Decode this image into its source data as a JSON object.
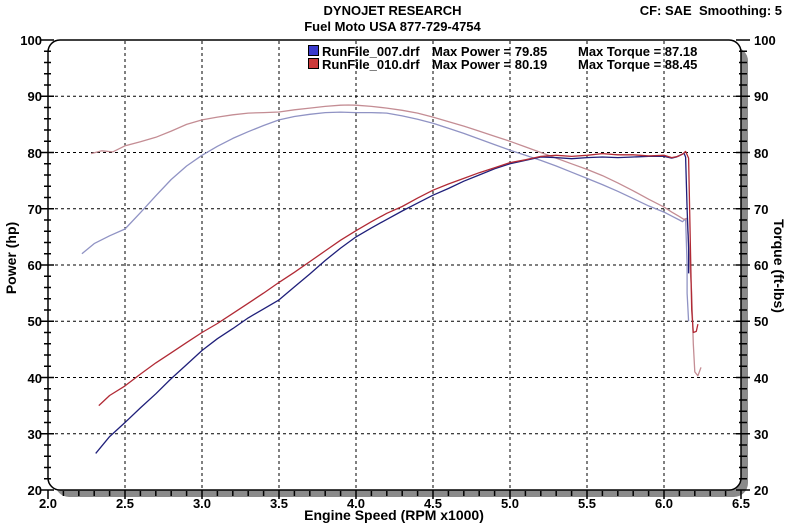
{
  "header": {
    "title": "DYNOJET RESEARCH",
    "subtitle": "Fuel Moto USA 877-729-4754",
    "correction_info": "CF: SAE  Smoothing: 5"
  },
  "legend": [
    {
      "file": "RunFile_007.drf",
      "max_power": "Max Power = 79.85",
      "max_torque": "Max Torque = 87.18",
      "swatch_color": "#3a3acc"
    },
    {
      "file": "RunFile_010.drf",
      "max_power": "Max Power = 80.19",
      "max_torque": "Max Torque = 88.45",
      "swatch_color": "#cc3a3a"
    }
  ],
  "axes": {
    "xlabel": "Engine Speed (RPM x1000)",
    "ylabel_left": "Power (hp)",
    "ylabel_right": "Torque (ft-lbs)"
  },
  "colors": {
    "shadow": "#8a8a8a",
    "frame": "#000000",
    "background": "#ffffff",
    "grid": "#000000"
  },
  "chart_data": {
    "type": "line",
    "title": "DYNOJET RESEARCH",
    "subtitle": "Fuel Moto USA 877-729-4754",
    "correction": "SAE",
    "smoothing": 5,
    "xlabel": "Engine Speed (RPM x1000)",
    "ylabel_left": "Power (hp)",
    "ylabel_right": "Torque (ft-lbs)",
    "xlim": [
      2.0,
      6.5
    ],
    "ylim": [
      20,
      100
    ],
    "x_ticks": [
      {
        "v": 2.0,
        "label": "2.0"
      },
      {
        "v": 2.5,
        "label": "2.5"
      },
      {
        "v": 3.0,
        "label": "3.0"
      },
      {
        "v": 3.5,
        "label": "3.5"
      },
      {
        "v": 4.0,
        "label": "4.0"
      },
      {
        "v": 4.5,
        "label": "4.5"
      },
      {
        "v": 5.0,
        "label": "5.0"
      },
      {
        "v": 5.5,
        "label": "5.5"
      },
      {
        "v": 6.0,
        "label": "6.0"
      },
      {
        "v": 6.5,
        "label": "6.5"
      }
    ],
    "y_ticks": [
      {
        "v": 20,
        "label": "20"
      },
      {
        "v": 30,
        "label": "30"
      },
      {
        "v": 40,
        "label": "40"
      },
      {
        "v": 50,
        "label": "50"
      },
      {
        "v": 60,
        "label": "60"
      },
      {
        "v": 70,
        "label": "70"
      },
      {
        "v": 80,
        "label": "80"
      },
      {
        "v": 90,
        "label": "90"
      },
      {
        "v": 100,
        "label": "100"
      }
    ],
    "x_minor_step": 0.1,
    "y_minor_step": 2,
    "grid": "dashed",
    "legend_position": "top-center",
    "series": [
      {
        "name": "torque_RunFile_007",
        "run": "RunFile_007.drf",
        "quantity": "torque",
        "max_value": 87.18,
        "color": "#9093c4",
        "points": [
          [
            2.22,
            62
          ],
          [
            2.3,
            63.8
          ],
          [
            2.4,
            65.2
          ],
          [
            2.5,
            66.4
          ],
          [
            2.6,
            69.3
          ],
          [
            2.7,
            72.3
          ],
          [
            2.8,
            75.2
          ],
          [
            2.9,
            77.6
          ],
          [
            3.0,
            79.5
          ],
          [
            3.1,
            81.1
          ],
          [
            3.2,
            82.5
          ],
          [
            3.3,
            83.7
          ],
          [
            3.4,
            84.8
          ],
          [
            3.5,
            85.8
          ],
          [
            3.6,
            86.4
          ],
          [
            3.7,
            86.8
          ],
          [
            3.8,
            87.1
          ],
          [
            3.9,
            87.18
          ],
          [
            4.0,
            87.1
          ],
          [
            4.1,
            87.1
          ],
          [
            4.2,
            87.0
          ],
          [
            4.3,
            86.5
          ],
          [
            4.4,
            85.9
          ],
          [
            4.5,
            85.2
          ],
          [
            4.6,
            84.3
          ],
          [
            4.7,
            83.4
          ],
          [
            4.8,
            82.4
          ],
          [
            4.9,
            81.4
          ],
          [
            5.0,
            80.4
          ],
          [
            5.1,
            79.5
          ],
          [
            5.2,
            78.6
          ],
          [
            5.3,
            77.6
          ],
          [
            5.4,
            76.5
          ],
          [
            5.5,
            75.4
          ],
          [
            5.6,
            74.3
          ],
          [
            5.7,
            73.1
          ],
          [
            5.8,
            71.8
          ],
          [
            5.9,
            70.5
          ],
          [
            6.0,
            69.4
          ],
          [
            6.05,
            68.7
          ],
          [
            6.1,
            68.0
          ],
          [
            6.12,
            67.7
          ],
          [
            6.14,
            68.2
          ],
          [
            6.15,
            60
          ],
          [
            6.15,
            55
          ],
          [
            6.16,
            50
          ]
        ]
      },
      {
        "name": "torque_RunFile_010",
        "run": "RunFile_010.drf",
        "quantity": "torque",
        "max_value": 88.45,
        "color": "#c48d94",
        "points": [
          [
            2.28,
            79.8
          ],
          [
            2.35,
            80.3
          ],
          [
            2.42,
            80.1
          ],
          [
            2.5,
            81.2
          ],
          [
            2.6,
            81.9
          ],
          [
            2.7,
            82.7
          ],
          [
            2.8,
            83.8
          ],
          [
            2.9,
            85.0
          ],
          [
            3.0,
            85.8
          ],
          [
            3.1,
            86.3
          ],
          [
            3.2,
            86.7
          ],
          [
            3.3,
            87.0
          ],
          [
            3.4,
            87.1
          ],
          [
            3.5,
            87.2
          ],
          [
            3.6,
            87.6
          ],
          [
            3.7,
            87.9
          ],
          [
            3.8,
            88.2
          ],
          [
            3.9,
            88.4
          ],
          [
            3.95,
            88.45
          ],
          [
            4.0,
            88.4
          ],
          [
            4.1,
            88.2
          ],
          [
            4.2,
            87.9
          ],
          [
            4.3,
            87.5
          ],
          [
            4.4,
            87.0
          ],
          [
            4.5,
            86.3
          ],
          [
            4.6,
            85.5
          ],
          [
            4.7,
            84.7
          ],
          [
            4.8,
            83.8
          ],
          [
            4.9,
            82.9
          ],
          [
            5.0,
            82.0
          ],
          [
            5.1,
            81.0
          ],
          [
            5.2,
            80.0
          ],
          [
            5.3,
            79.0
          ],
          [
            5.4,
            78.0
          ],
          [
            5.5,
            77.0
          ],
          [
            5.6,
            75.9
          ],
          [
            5.7,
            74.6
          ],
          [
            5.8,
            73.2
          ],
          [
            5.9,
            71.7
          ],
          [
            6.0,
            70.3
          ],
          [
            6.05,
            69.4
          ],
          [
            6.1,
            68.6
          ],
          [
            6.13,
            68.1
          ],
          [
            6.15,
            68.3
          ],
          [
            6.18,
            55
          ],
          [
            6.19,
            46
          ],
          [
            6.2,
            41
          ],
          [
            6.22,
            40.3
          ],
          [
            6.24,
            41.8
          ]
        ]
      },
      {
        "name": "power_RunFile_007",
        "run": "RunFile_007.drf",
        "quantity": "power",
        "max_value": 79.85,
        "color": "#1f1f7a",
        "points": [
          [
            2.31,
            26.5
          ],
          [
            2.4,
            29.5
          ],
          [
            2.5,
            32.0
          ],
          [
            2.6,
            34.6
          ],
          [
            2.7,
            37.1
          ],
          [
            2.8,
            39.8
          ],
          [
            2.9,
            42.3
          ],
          [
            3.0,
            44.8
          ],
          [
            3.1,
            46.9
          ],
          [
            3.2,
            48.7
          ],
          [
            3.3,
            50.6
          ],
          [
            3.4,
            52.2
          ],
          [
            3.5,
            53.8
          ],
          [
            3.6,
            56.1
          ],
          [
            3.7,
            58.4
          ],
          [
            3.8,
            60.8
          ],
          [
            3.9,
            63.0
          ],
          [
            4.0,
            65.0
          ],
          [
            4.1,
            66.6
          ],
          [
            4.2,
            68.1
          ],
          [
            4.3,
            69.6
          ],
          [
            4.4,
            71.0
          ],
          [
            4.5,
            72.4
          ],
          [
            4.6,
            73.6
          ],
          [
            4.7,
            74.9
          ],
          [
            4.8,
            76.0
          ],
          [
            4.9,
            77.1
          ],
          [
            5.0,
            78.0
          ],
          [
            5.1,
            78.6
          ],
          [
            5.2,
            79.2
          ],
          [
            5.3,
            79.1
          ],
          [
            5.4,
            78.9
          ],
          [
            5.5,
            79.1
          ],
          [
            5.6,
            79.2
          ],
          [
            5.7,
            79.1
          ],
          [
            5.8,
            79.2
          ],
          [
            5.9,
            79.3
          ],
          [
            6.0,
            79.3
          ],
          [
            6.05,
            79.0
          ],
          [
            6.08,
            79.2
          ],
          [
            6.11,
            79.6
          ],
          [
            6.13,
            79.85
          ],
          [
            6.14,
            79.2
          ],
          [
            6.15,
            70.0
          ],
          [
            6.16,
            63.0
          ],
          [
            6.16,
            58.5
          ]
        ]
      },
      {
        "name": "power_RunFile_010",
        "run": "RunFile_010.drf",
        "quantity": "power",
        "max_value": 80.19,
        "color": "#b12a35",
        "points": [
          [
            2.33,
            35.0
          ],
          [
            2.4,
            36.8
          ],
          [
            2.5,
            38.5
          ],
          [
            2.6,
            40.6
          ],
          [
            2.7,
            42.6
          ],
          [
            2.8,
            44.4
          ],
          [
            2.9,
            46.2
          ],
          [
            3.0,
            48.0
          ],
          [
            3.1,
            49.6
          ],
          [
            3.2,
            51.4
          ],
          [
            3.3,
            53.2
          ],
          [
            3.4,
            55.0
          ],
          [
            3.5,
            56.9
          ],
          [
            3.6,
            58.7
          ],
          [
            3.7,
            60.6
          ],
          [
            3.8,
            62.5
          ],
          [
            3.9,
            64.4
          ],
          [
            4.0,
            66.1
          ],
          [
            4.1,
            67.7
          ],
          [
            4.2,
            69.2
          ],
          [
            4.3,
            70.4
          ],
          [
            4.4,
            71.9
          ],
          [
            4.5,
            73.3
          ],
          [
            4.6,
            74.4
          ],
          [
            4.7,
            75.4
          ],
          [
            4.8,
            76.4
          ],
          [
            4.9,
            77.3
          ],
          [
            5.0,
            78.2
          ],
          [
            5.1,
            78.7
          ],
          [
            5.2,
            79.3
          ],
          [
            5.3,
            79.5
          ],
          [
            5.4,
            79.3
          ],
          [
            5.5,
            79.5
          ],
          [
            5.6,
            79.8
          ],
          [
            5.7,
            79.6
          ],
          [
            5.8,
            79.6
          ],
          [
            5.9,
            79.4
          ],
          [
            6.0,
            79.5
          ],
          [
            6.05,
            79.1
          ],
          [
            6.09,
            79.3
          ],
          [
            6.12,
            79.7
          ],
          [
            6.14,
            80.19
          ],
          [
            6.16,
            79.0
          ],
          [
            6.17,
            65.0
          ],
          [
            6.18,
            52.0
          ],
          [
            6.19,
            48.0
          ],
          [
            6.21,
            48.2
          ],
          [
            6.22,
            49.5
          ]
        ]
      }
    ]
  }
}
